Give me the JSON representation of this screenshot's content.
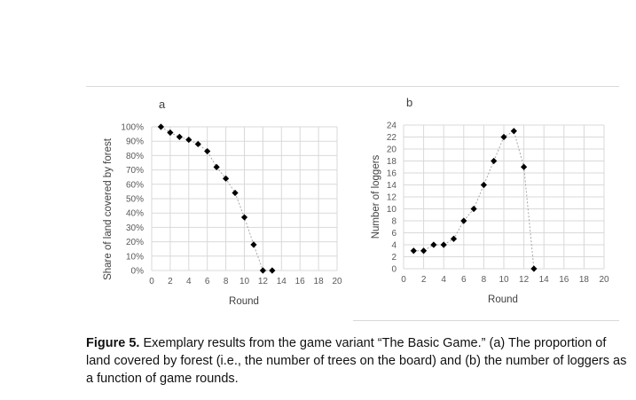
{
  "chart_data": [
    {
      "type": "scatter",
      "panel_label": "a",
      "xlabel": "Round",
      "ylabel": "Share of land covered by forest",
      "xlim": [
        0,
        20
      ],
      "ylim": [
        0,
        100
      ],
      "xticks": [
        "0",
        "2",
        "4",
        "6",
        "8",
        "10",
        "12",
        "14",
        "16",
        "18",
        "20"
      ],
      "yticks": [
        "0%",
        "10%",
        "20%",
        "30%",
        "40%",
        "50%",
        "60%",
        "70%",
        "80%",
        "90%",
        "100%"
      ],
      "grid": true,
      "series": [
        {
          "x": [
            1,
            2,
            3,
            4,
            5,
            6,
            7,
            8,
            9,
            10,
            11,
            12,
            13
          ],
          "y": [
            100,
            96,
            93,
            91,
            88,
            83,
            72,
            64,
            54,
            37,
            18,
            0,
            0
          ]
        }
      ]
    },
    {
      "type": "scatter",
      "panel_label": "b",
      "xlabel": "Round",
      "ylabel": "Number of loggers",
      "xlim": [
        0,
        20
      ],
      "ylim": [
        0,
        24
      ],
      "xticks": [
        "0",
        "2",
        "4",
        "6",
        "8",
        "10",
        "12",
        "14",
        "16",
        "18",
        "20"
      ],
      "yticks": [
        "0",
        "2",
        "4",
        "6",
        "8",
        "10",
        "12",
        "14",
        "16",
        "18",
        "20",
        "22",
        "24"
      ],
      "grid": true,
      "series": [
        {
          "x": [
            1,
            2,
            3,
            4,
            5,
            6,
            7,
            8,
            9,
            10,
            11,
            12,
            13
          ],
          "y": [
            3,
            3,
            4,
            4,
            5,
            8,
            10,
            14,
            18,
            22,
            23,
            17,
            0
          ]
        }
      ]
    }
  ],
  "caption": {
    "label": "Figure 5.",
    "text": " Exemplary results from the game variant “The Basic Game.” (a) The proportion of land covered by forest (i.e., the number of trees on the board) and (b) the number of loggers as a function of game rounds."
  },
  "colors": {
    "marker": "#000000",
    "line": "#a6a6a6",
    "grid": "#d9d9d9",
    "text": "#595959"
  }
}
